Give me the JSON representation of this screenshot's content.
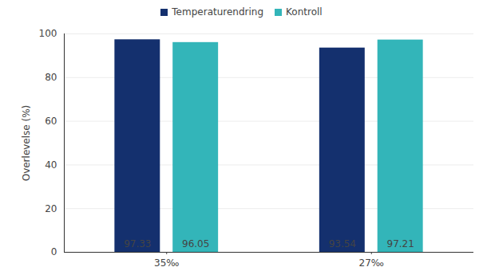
{
  "chart_data": {
    "type": "bar",
    "y_label": "Overlevelse (%)",
    "categories": [
      "35‰",
      "27‰"
    ],
    "series": [
      {
        "name": "Temperaturendring",
        "color": "#14306e",
        "values": [
          97.33,
          93.54
        ]
      },
      {
        "name": "Kontroll",
        "color": "#33b5b9",
        "values": [
          96.05,
          97.21
        ]
      }
    ],
    "ylim": [
      0,
      100
    ],
    "yticks": [
      0,
      20,
      40,
      60,
      80,
      100
    ],
    "grid": true,
    "legend": "top",
    "data_labels": true
  }
}
